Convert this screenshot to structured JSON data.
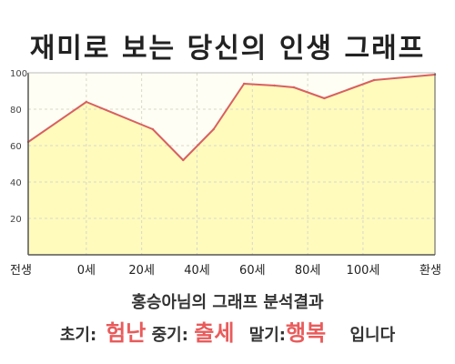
{
  "chart_data": {
    "type": "area",
    "title": "재미로 보는 당신의 인생 그래프",
    "xlabel": "",
    "ylabel": "",
    "x_ticks": [
      "전생",
      "0세",
      "20세",
      "40세",
      "60세",
      "80세",
      "100세",
      "환생"
    ],
    "y_ticks": [
      "20",
      "40",
      "60",
      "80",
      "100"
    ],
    "ylim": [
      0,
      100
    ],
    "grid": true,
    "points": [
      {
        "x": -21,
        "y": 62
      },
      {
        "x": 0,
        "y": 84
      },
      {
        "x": 24,
        "y": 69
      },
      {
        "x": 35,
        "y": 52
      },
      {
        "x": 46,
        "y": 69
      },
      {
        "x": 57,
        "y": 94
      },
      {
        "x": 68,
        "y": 93
      },
      {
        "x": 75,
        "y": 92
      },
      {
        "x": 86,
        "y": 86
      },
      {
        "x": 104,
        "y": 96
      },
      {
        "x": 126,
        "y": 99
      }
    ],
    "fill_color": "#fffbbd",
    "line_color": "#d96060"
  },
  "summary": {
    "headline": "홍승아님의 그래프 분석결과",
    "early_label": "초기:",
    "early_value": "험난",
    "mid_label": "중기:",
    "mid_value": "출세",
    "late_label": "말기:",
    "late_value": "행복",
    "ending": "입니다"
  }
}
